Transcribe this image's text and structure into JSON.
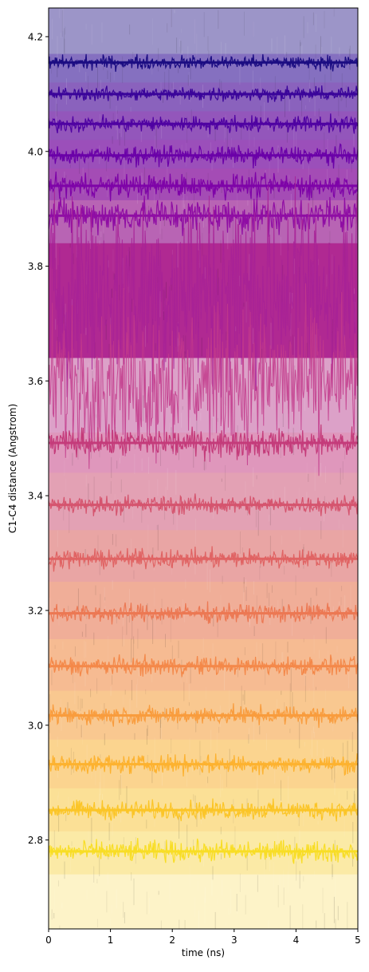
{
  "chart_data": {
    "type": "line",
    "title": "",
    "xlabel": "time (ns)",
    "ylabel": "C1-C4 distance (Angstrom)",
    "xlim": [
      0,
      5
    ],
    "ylim": [
      2.645,
      4.25
    ],
    "x_ticks": [
      "0",
      "1",
      "2",
      "3",
      "4",
      "5"
    ],
    "x_tick_values": [
      0,
      1,
      2,
      3,
      4,
      5
    ],
    "y_ticks": [
      "2.8",
      "3.0",
      "3.2",
      "3.4",
      "3.6",
      "3.8",
      "4.0",
      "4.2"
    ],
    "y_tick_values": [
      2.8,
      3.0,
      3.2,
      3.4,
      3.6,
      3.8,
      4.0,
      4.2
    ],
    "grid": false,
    "legend": "none",
    "colormap": "plasma",
    "series": [
      {
        "mean": 4.155,
        "noise": 0.006,
        "color": "#1b0c82"
      },
      {
        "mean": 4.1,
        "noise": 0.006,
        "color": "#3a049a"
      },
      {
        "mean": 4.048,
        "noise": 0.007,
        "color": "#4f02a2"
      },
      {
        "mean": 3.993,
        "noise": 0.008,
        "color": "#6a00a8"
      },
      {
        "mean": 3.94,
        "noise": 0.01,
        "color": "#7e03a8"
      },
      {
        "mean": 3.888,
        "noise": 0.015,
        "color": "#8f0da4"
      },
      {
        "mean": 3.76,
        "noise": 0.08,
        "color": "#a72197"
      },
      {
        "mean": 3.6,
        "noise": 0.06,
        "color": "#c2398b"
      },
      {
        "mean": 3.492,
        "noise": 0.012,
        "color": "#c43b7a"
      },
      {
        "mean": 3.384,
        "noise": 0.008,
        "color": "#d5546e"
      },
      {
        "mean": 3.29,
        "noise": 0.008,
        "color": "#e06363"
      },
      {
        "mean": 3.195,
        "noise": 0.008,
        "color": "#ec7853"
      },
      {
        "mean": 3.103,
        "noise": 0.008,
        "color": "#f48849"
      },
      {
        "mean": 3.017,
        "noise": 0.008,
        "color": "#f99c3d"
      },
      {
        "mean": 2.932,
        "noise": 0.008,
        "color": "#fdb22f"
      },
      {
        "mean": 2.852,
        "noise": 0.008,
        "color": "#fbc527"
      },
      {
        "mean": 2.78,
        "noise": 0.009,
        "color": "#f8dd25"
      }
    ],
    "bands": [
      {
        "y0": 4.17,
        "y1": 4.25,
        "color": "#9c95c8"
      },
      {
        "y0": 4.12,
        "y1": 4.17,
        "color": "#8570c0"
      },
      {
        "y0": 4.07,
        "y1": 4.12,
        "color": "#8a62bd"
      },
      {
        "y0": 4.02,
        "y1": 4.07,
        "color": "#9356bb"
      },
      {
        "y0": 3.97,
        "y1": 4.02,
        "color": "#9b4fba"
      },
      {
        "y0": 3.915,
        "y1": 3.97,
        "color": "#a44cb5"
      },
      {
        "y0": 3.84,
        "y1": 3.915,
        "color": "#b864b4"
      },
      {
        "y0": 3.64,
        "y1": 3.84,
        "color": "#b02992"
      },
      {
        "y0": 3.51,
        "y1": 3.64,
        "color": "#dca1c8"
      },
      {
        "y0": 3.44,
        "y1": 3.51,
        "color": "#df97bc"
      },
      {
        "y0": 3.34,
        "y1": 3.44,
        "color": "#e3a1b4"
      },
      {
        "y0": 3.25,
        "y1": 3.34,
        "color": "#e9a5a4"
      },
      {
        "y0": 3.15,
        "y1": 3.25,
        "color": "#f0ae98"
      },
      {
        "y0": 3.06,
        "y1": 3.15,
        "color": "#f6bb92"
      },
      {
        "y0": 2.975,
        "y1": 3.06,
        "color": "#f9c890"
      },
      {
        "y0": 2.89,
        "y1": 2.975,
        "color": "#fbd48f"
      },
      {
        "y0": 2.815,
        "y1": 2.89,
        "color": "#fbe096"
      },
      {
        "y0": 2.74,
        "y1": 2.815,
        "color": "#fbeaa6"
      },
      {
        "y0": 2.645,
        "y1": 2.74,
        "color": "#fdf3c8"
      }
    ]
  }
}
